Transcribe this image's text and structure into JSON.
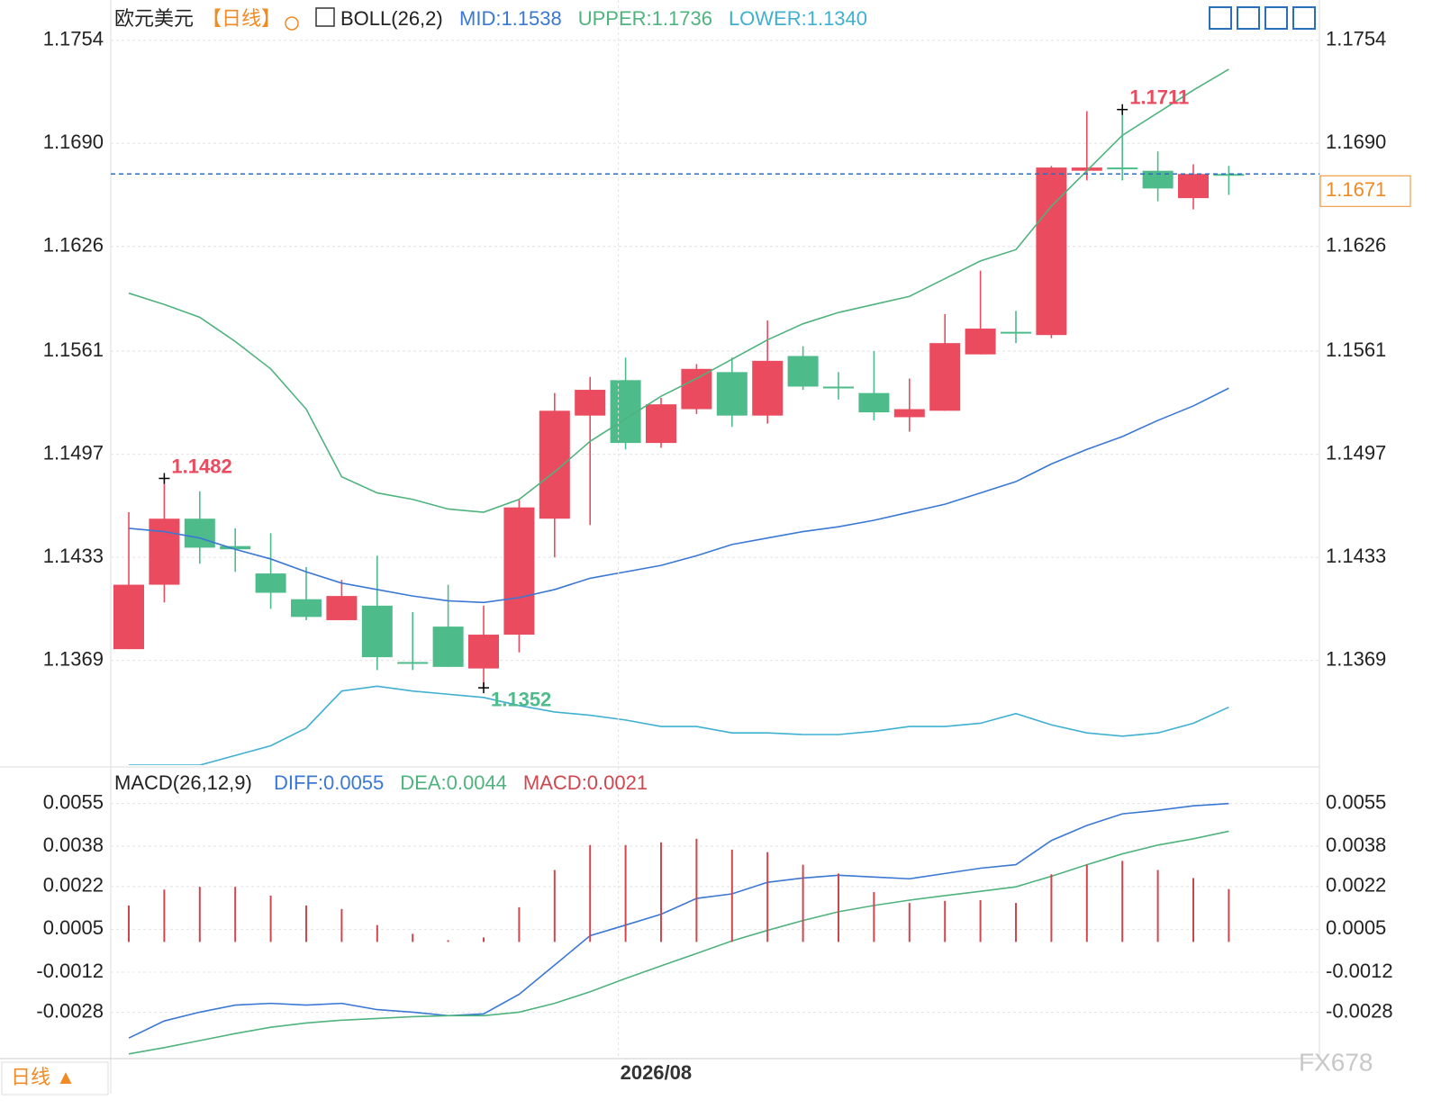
{
  "chart_data": [
    {
      "type": "candlestick",
      "title": "欧元美元",
      "period": "【日线】",
      "indicator": "BOLL(26,2)",
      "categories": [
        null,
        null,
        null,
        null,
        null,
        null,
        null,
        null,
        null,
        null,
        null,
        null,
        null,
        null,
        "2026/08",
        null,
        null,
        null,
        null,
        null,
        null,
        null,
        null,
        null,
        null,
        null,
        null,
        null,
        null,
        null,
        null,
        null
      ],
      "open": [
        1.1376,
        1.1416,
        1.1457,
        1.144,
        1.1423,
        1.1407,
        1.1394,
        1.1403,
        1.1368,
        1.139,
        1.1364,
        1.1385,
        1.1457,
        1.1521,
        1.1543,
        1.1504,
        1.1525,
        1.1548,
        1.1521,
        1.1558,
        1.1539,
        1.1535,
        1.152,
        1.1524,
        1.1559,
        1.1573,
        1.1571,
        1.1673,
        1.1675,
        1.1673,
        1.1656,
        1.1671
      ],
      "high": [
        1.1461,
        1.1482,
        1.1474,
        1.1451,
        1.1448,
        1.1427,
        1.1419,
        1.1434,
        1.1399,
        1.1416,
        1.1403,
        1.1469,
        1.1535,
        1.1545,
        1.1557,
        1.1532,
        1.1553,
        1.1557,
        1.158,
        1.1564,
        1.1548,
        1.1561,
        1.1544,
        1.1584,
        1.1611,
        1.1586,
        1.1676,
        1.171,
        1.1711,
        1.1685,
        1.1677,
        1.1676
      ],
      "low": [
        1.1376,
        1.1405,
        1.1429,
        1.1424,
        1.1401,
        1.1394,
        1.1394,
        1.1363,
        1.1363,
        1.1365,
        1.1352,
        1.1374,
        1.1433,
        1.1453,
        1.15,
        1.1501,
        1.1522,
        1.1514,
        1.1516,
        1.1537,
        1.1531,
        1.1518,
        1.1511,
        1.1524,
        1.1559,
        1.1566,
        1.1569,
        1.1667,
        1.1667,
        1.1654,
        1.1649,
        1.1658
      ],
      "close": [
        1.1416,
        1.1457,
        1.1439,
        1.1438,
        1.1411,
        1.1396,
        1.1409,
        1.1371,
        1.1367,
        1.1365,
        1.1385,
        1.1464,
        1.1524,
        1.1537,
        1.1504,
        1.1528,
        1.155,
        1.1521,
        1.1555,
        1.1539,
        1.1538,
        1.1523,
        1.1525,
        1.1566,
        1.1575,
        1.1572,
        1.1675,
        1.1675,
        1.1674,
        1.1662,
        1.1671,
        1.1671
      ],
      "up_color": "#eb4b5e",
      "down_color": "#4dbb8a",
      "series": [
        {
          "name": "MID",
          "legend": "MID:1.1538",
          "color": "#3a78d4",
          "values": [
            1.1451,
            1.1449,
            1.1445,
            1.1438,
            1.1432,
            1.1424,
            1.1417,
            1.1413,
            1.1409,
            1.1406,
            1.1405,
            1.1408,
            1.1413,
            1.142,
            1.1424,
            1.1428,
            1.1434,
            1.1441,
            1.1445,
            1.1449,
            1.1452,
            1.1456,
            1.1461,
            1.1466,
            1.1473,
            1.148,
            1.1491,
            1.15,
            1.1508,
            1.1518,
            1.1527,
            1.1538
          ]
        },
        {
          "name": "UPPER",
          "legend": "UPPER:1.1736",
          "color": "#4fb37e",
          "values": [
            1.1597,
            1.159,
            1.1582,
            1.1567,
            1.155,
            1.1525,
            1.1483,
            1.1473,
            1.1469,
            1.1463,
            1.1461,
            1.1469,
            1.1486,
            1.1505,
            1.1519,
            1.1533,
            1.1544,
            1.1556,
            1.1568,
            1.1578,
            1.1585,
            1.159,
            1.1595,
            1.1606,
            1.1617,
            1.1624,
            1.1651,
            1.1673,
            1.1695,
            1.1709,
            1.1723,
            1.1736
          ]
        },
        {
          "name": "LOWER",
          "legend": "LOWER:1.1340",
          "color": "#3fb0d0",
          "values": [
            1.1304,
            1.1304,
            1.1304,
            1.131,
            1.1316,
            1.1327,
            1.135,
            1.1353,
            1.135,
            1.1348,
            1.1346,
            1.1341,
            1.1337,
            1.1335,
            1.1332,
            1.1328,
            1.1328,
            1.1324,
            1.1324,
            1.1323,
            1.1323,
            1.1325,
            1.1328,
            1.1328,
            1.133,
            1.1336,
            1.1329,
            1.1324,
            1.1322,
            1.1324,
            1.133,
            1.134
          ]
        }
      ],
      "marked": [
        {
          "x": 1,
          "at": "high"
        },
        {
          "x": 10,
          "at": "low"
        },
        {
          "x": 28,
          "at": "high"
        }
      ],
      "ylim": [
        1.1304,
        1.1779
      ],
      "yticks": [
        1.1754,
        {
          "value": 1.169,
          "label": "1.1690"
        },
        1.1626,
        1.1561,
        1.1497,
        1.1433,
        1.1369
      ],
      "grid": true
    },
    {
      "type": "macd",
      "title": "MACD(26,12,9)",
      "series": [
        {
          "name": "DIFF",
          "legend": "DIFF:0.0055",
          "color": "#3a78d4",
          "values": [
            -0.00382,
            -0.00314,
            -0.00279,
            -0.00251,
            -0.00244,
            -0.00251,
            -0.00244,
            -0.00269,
            -0.00279,
            -0.00293,
            -0.00286,
            -0.00208,
            -0.00092,
            0.00025,
            0.00067,
            0.0011,
            0.00173,
            0.00191,
            0.00237,
            0.00254,
            0.00265,
            0.00258,
            0.00251,
            0.00272,
            0.00293,
            0.00307,
            0.00403,
            0.00463,
            0.00509,
            0.00523,
            0.00541,
            0.0055
          ]
        },
        {
          "name": "DEA",
          "legend": "DEA:0.0044",
          "color": "#4fb37e",
          "values": [
            -0.00445,
            -0.0042,
            -0.00392,
            -0.00364,
            -0.00339,
            -0.00322,
            -0.00311,
            -0.00304,
            -0.00297,
            -0.00293,
            -0.00293,
            -0.00279,
            -0.00244,
            -0.00198,
            -0.00145,
            -0.00095,
            -0.00046,
            4e-05,
            0.00046,
            0.00085,
            0.0012,
            0.00145,
            0.00166,
            0.00184,
            0.00201,
            0.00219,
            0.00261,
            0.00307,
            0.0035,
            0.00385,
            0.0041,
            0.0044
          ]
        },
        {
          "name": "MACD",
          "legend": "MACD:0.0021",
          "color": "#d0464f",
          "kind": "bar",
          "values": [
            0.00145,
            0.00208,
            0.00219,
            0.00219,
            0.00184,
            0.00145,
            0.00131,
            0.00067,
            0.00032,
            7e-05,
            0.00018,
            0.00138,
            0.00286,
            0.00385,
            0.00385,
            0.00396,
            0.0041,
            0.00367,
            0.00357,
            0.00307,
            0.00272,
            0.00198,
            0.00155,
            0.00163,
            0.00166,
            0.00155,
            0.00269,
            0.00307,
            0.00322,
            0.00286,
            0.00254,
            0.0021
          ]
        }
      ],
      "ylim": [
        -0.0046,
        0.00674
      ],
      "yticks": [
        0.0055,
        0.0038,
        0.0022,
        0.0005,
        -0.0012,
        -0.0028
      ],
      "grid": true
    }
  ],
  "footer": {
    "period_button": "日线 ▲",
    "watermark": "FX678"
  }
}
